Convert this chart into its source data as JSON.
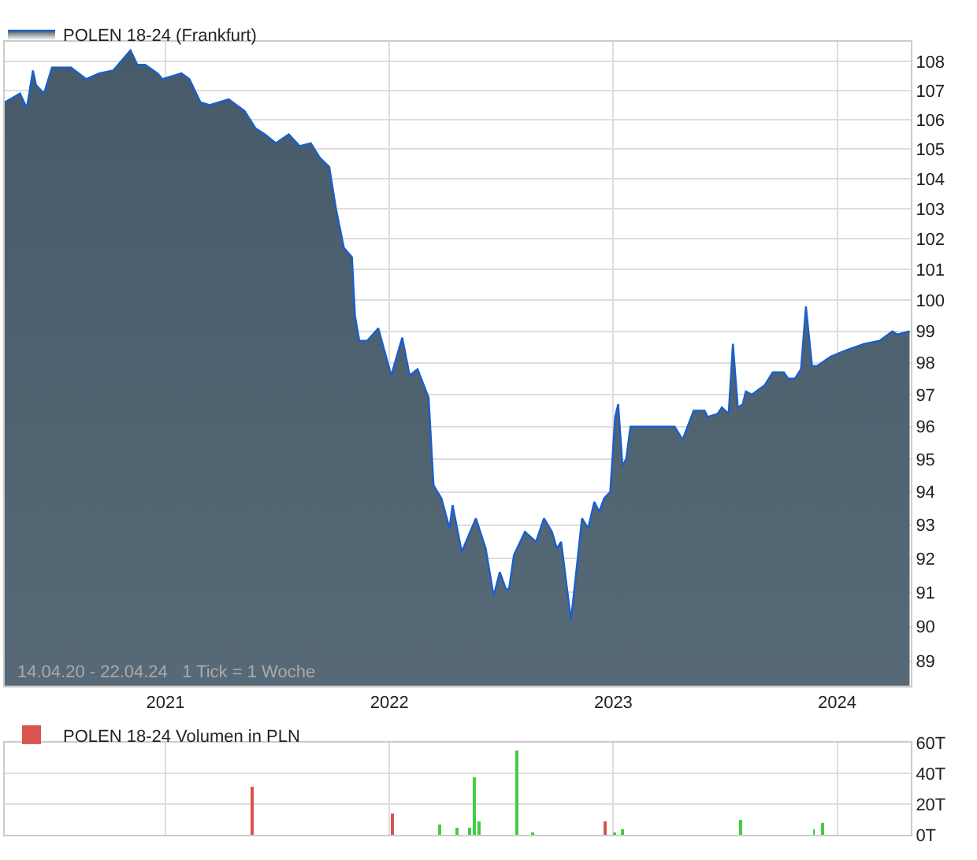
{
  "chart_data": [
    {
      "type": "area",
      "log": "y",
      "grid": true,
      "legend": "top left",
      "marker": "none",
      "line_style": "solid",
      "annotations": [
        "14.04.20 - 22.04.24   1 Tick = 1 Woche"
      ],
      "xlim": [
        "2020-04-14",
        "2024-04-30"
      ],
      "xticks": [
        {
          "value": "2021-01-01",
          "label": "2021"
        },
        {
          "value": "2022-01-01",
          "label": "2022"
        },
        {
          "value": "2023-01-01",
          "label": "2023"
        },
        {
          "value": "2024-01-01",
          "label": "2024"
        }
      ],
      "ylim": [
        88.3,
        108.7
      ],
      "yticks": [
        89,
        90,
        91,
        92,
        93,
        94,
        95,
        96,
        97,
        98,
        99,
        100,
        101,
        102,
        103,
        104,
        105,
        106,
        107,
        108
      ],
      "series": [
        {
          "name": "POLEN 18-24 (Frankfurt)",
          "color": "#1a5fcc",
          "x": [
            "2020-04-14",
            "2020-05-09",
            "2020-05-20",
            "2020-05-30",
            "2020-06-04",
            "2020-06-17",
            "2020-06-30",
            "2020-07-18",
            "2020-07-31",
            "2020-08-25",
            "2020-09-15",
            "2020-10-08",
            "2020-11-05",
            "2020-11-16",
            "2020-11-29",
            "2020-12-19",
            "2020-12-27",
            "2021-01-27",
            "2021-02-09",
            "2021-02-27",
            "2021-03-14",
            "2021-04-14",
            "2021-05-10",
            "2021-05-28",
            "2021-06-12",
            "2021-06-30",
            "2021-07-21",
            "2021-08-08",
            "2021-08-26",
            "2021-09-10",
            "2021-09-25",
            "2021-10-06",
            "2021-10-19",
            "2021-11-01",
            "2021-11-06",
            "2021-11-13",
            "2021-11-26",
            "2021-12-14",
            "2022-01-04",
            "2022-01-22",
            "2022-02-03",
            "2022-02-16",
            "2022-03-06",
            "2022-03-14",
            "2022-03-27",
            "2022-04-09",
            "2022-04-14",
            "2022-04-29",
            "2022-05-22",
            "2022-06-07",
            "2022-06-20",
            "2022-06-30",
            "2022-07-10",
            "2022-07-15",
            "2022-07-23",
            "2022-08-10",
            "2022-08-28",
            "2022-09-10",
            "2022-09-23",
            "2022-10-01",
            "2022-10-08",
            "2022-10-24",
            "2022-11-01",
            "2022-11-11",
            "2022-11-21",
            "2022-12-01",
            "2022-12-09",
            "2022-12-17",
            "2022-12-27",
            "2023-01-04",
            "2023-01-09",
            "2023-01-16",
            "2023-01-22",
            "2023-01-29",
            "2023-04-11",
            "2023-04-24",
            "2023-05-12",
            "2023-05-30",
            "2023-06-04",
            "2023-06-20",
            "2023-06-27",
            "2023-07-08",
            "2023-07-15",
            "2023-07-23",
            "2023-07-31",
            "2023-08-05",
            "2023-08-15",
            "2023-09-05",
            "2023-09-18",
            "2023-10-06",
            "2023-10-13",
            "2023-10-24",
            "2023-11-03",
            "2023-11-11",
            "2023-11-21",
            "2023-11-29",
            "2023-12-22",
            "2024-01-16",
            "2024-02-14",
            "2024-03-10",
            "2024-03-31",
            "2024-04-08",
            "2024-04-28"
          ],
          "values": [
            106.6,
            106.9,
            106.4,
            107.7,
            107.2,
            106.9,
            107.8,
            107.8,
            107.8,
            107.4,
            107.6,
            107.7,
            108.4,
            107.9,
            107.9,
            107.6,
            107.4,
            107.6,
            107.4,
            106.6,
            106.5,
            106.7,
            106.3,
            105.7,
            105.5,
            105.2,
            105.5,
            105.1,
            105.2,
            104.7,
            104.4,
            103.0,
            101.7,
            101.4,
            99.5,
            98.7,
            98.7,
            99.1,
            97.6,
            98.8,
            97.6,
            97.8,
            96.9,
            94.2,
            93.8,
            92.9,
            93.6,
            92.2,
            93.2,
            92.3,
            90.9,
            91.6,
            91.1,
            91.1,
            92.1,
            92.8,
            92.5,
            93.2,
            92.8,
            92.3,
            92.5,
            90.2,
            91.5,
            93.2,
            92.9,
            93.7,
            93.4,
            93.8,
            94.0,
            96.3,
            96.7,
            94.8,
            95.0,
            96.0,
            96.0,
            95.6,
            96.5,
            96.5,
            96.3,
            96.4,
            96.6,
            96.4,
            98.6,
            96.6,
            96.7,
            97.1,
            97.0,
            97.3,
            97.7,
            97.7,
            97.5,
            97.5,
            97.8,
            99.8,
            97.9,
            97.9,
            98.2,
            98.4,
            98.6,
            98.7,
            99.0,
            98.9,
            99.0
          ]
        }
      ]
    },
    {
      "type": "bar",
      "grid": true,
      "legend": "top left",
      "tick_labels": "y",
      "xlim": [
        "2020-04-14",
        "2024-04-30"
      ],
      "xticks": [
        {
          "value": "2021-01-01",
          "label": null
        },
        {
          "value": "2022-01-01",
          "label": null
        },
        {
          "value": "2023-01-01",
          "label": null
        },
        {
          "value": "2024-01-01",
          "label": null
        }
      ],
      "ylim": [
        0,
        60
      ],
      "yticks": [
        {
          "value": 0,
          "label": "0T"
        },
        {
          "value": 20,
          "label": "20T"
        },
        {
          "value": 40,
          "label": "40T"
        },
        {
          "value": 60,
          "label": "60T"
        }
      ],
      "series": [
        {
          "name": "POLEN 18-24 Volumen in PLN",
          "color": "#d9534f",
          "x": [
            "2021-05-22",
            "2022-01-06",
            "2022-03-24",
            "2022-04-22",
            "2022-05-12",
            "2022-05-20",
            "2022-05-28",
            "2022-07-28",
            "2022-08-23",
            "2022-12-19",
            "2023-01-04",
            "2023-01-16",
            "2023-07-28",
            "2023-11-24",
            "2023-12-09"
          ],
          "values": [
            31,
            14,
            7,
            5,
            5,
            38,
            9,
            55,
            1,
            9,
            1,
            4,
            10,
            4,
            8
          ],
          "colors": [
            "#d9534f",
            "#d9534f",
            "#44cc44",
            "#44cc44",
            "#44cc44",
            "#44cc44",
            "#44cc44",
            "#44cc44",
            "#44cc44",
            "#d9534f",
            "#44cc44",
            "#44cc44",
            "#44cc44",
            "#44cc44",
            "#44cc44"
          ]
        }
      ]
    }
  ]
}
